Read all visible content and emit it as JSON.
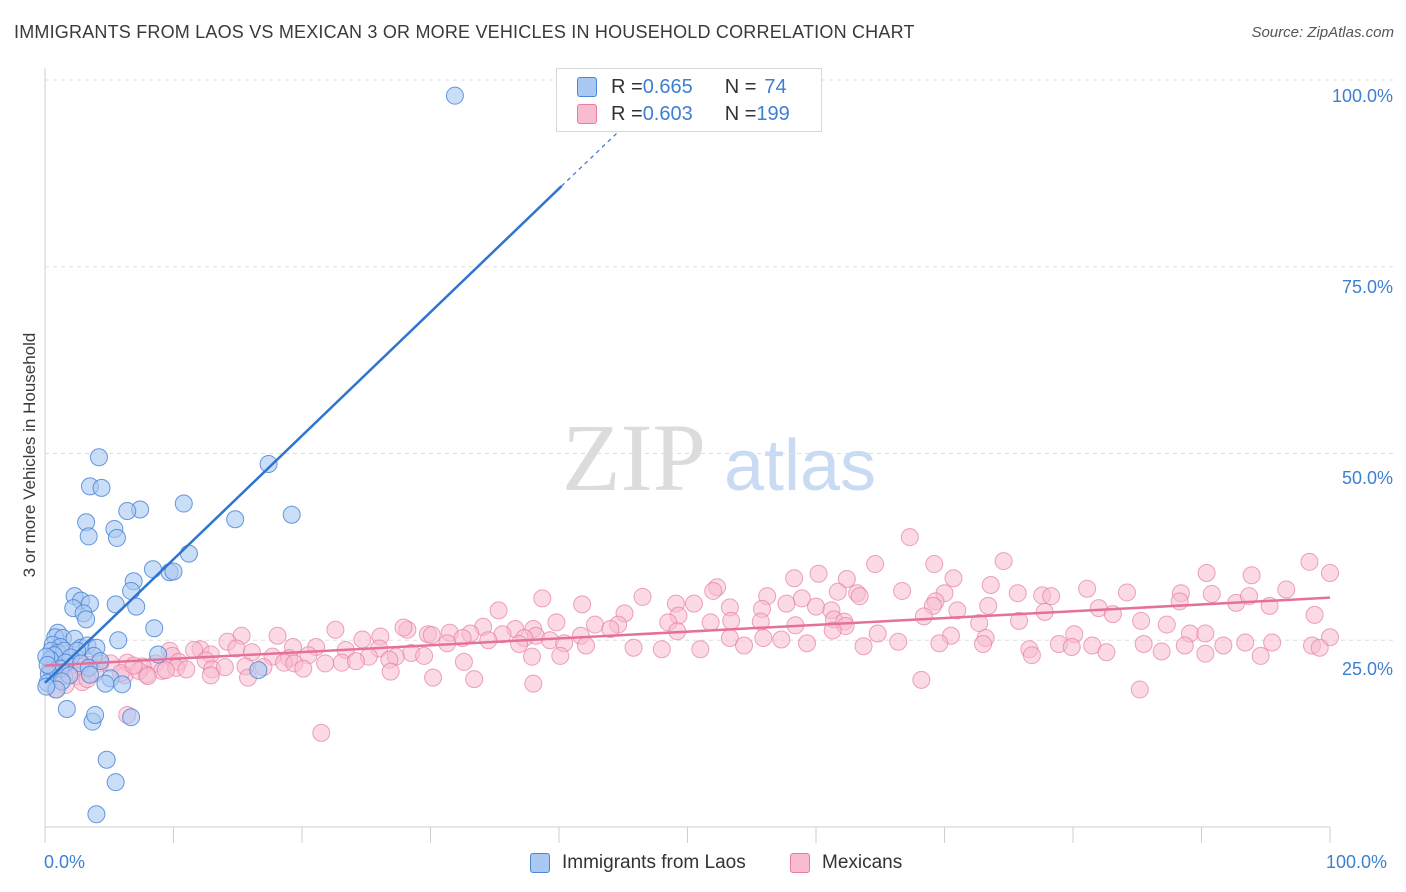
{
  "header": {
    "title": "IMMIGRANTS FROM LAOS VS MEXICAN 3 OR MORE VEHICLES IN HOUSEHOLD CORRELATION CHART",
    "source": "Source: ZipAtlas.com"
  },
  "watermark": {
    "zip": "ZIP",
    "atlas": "atlas"
  },
  "legend_top": {
    "rows": [
      {
        "r_label": "R = ",
        "r_value": "0.665",
        "n_label": "N = ",
        "n_value": "74"
      },
      {
        "r_label": "R = ",
        "r_value": "0.603",
        "n_label": "N = ",
        "n_value": "199"
      }
    ]
  },
  "colors": {
    "laos_fill": "#a9c8f2",
    "laos_stroke": "#4d86d6",
    "laos_line": "#2f74d0",
    "mex_fill": "#f7bcd0",
    "mex_stroke": "#e67ea0",
    "mex_line": "#e5709a",
    "tick_text": "#3f7fd0",
    "grid": "#dddddd"
  },
  "chart_data": {
    "type": "scatter",
    "title": "IMMIGRANTS FROM LAOS VS MEXICAN 3 OR MORE VEHICLES IN HOUSEHOLD CORRELATION CHART",
    "xlabel": "",
    "ylabel": "3 or more Vehicles in Household",
    "xlim": [
      0,
      100
    ],
    "ylim": [
      0,
      100
    ],
    "x_tick_labels": [
      "0.0%",
      "100.0%"
    ],
    "y_tick_labels": [
      "25.0%",
      "50.0%",
      "75.0%",
      "100.0%"
    ],
    "y_ticks": [
      25,
      50,
      75,
      100
    ],
    "grid": true,
    "legend_position": "bottom",
    "series": [
      {
        "name": "Immigrants from Laos",
        "r": 0.665,
        "n": 74,
        "trend": {
          "x0": 0,
          "y0": 19.3,
          "x1": 40.2,
          "y1": 85.8,
          "dashed_to_x": 45.0,
          "dashed_to_y": 93.7
        },
        "points": [
          [
            31.9,
            97.9
          ],
          [
            4.2,
            49.5
          ],
          [
            17.4,
            48.6
          ],
          [
            3.5,
            45.6
          ],
          [
            4.4,
            45.4
          ],
          [
            10.8,
            43.3
          ],
          [
            7.4,
            42.5
          ],
          [
            6.4,
            42.3
          ],
          [
            14.8,
            41.2
          ],
          [
            19.2,
            41.8
          ],
          [
            3.2,
            40.8
          ],
          [
            5.4,
            39.9
          ],
          [
            3.4,
            38.9
          ],
          [
            5.6,
            38.7
          ],
          [
            11.2,
            36.6
          ],
          [
            8.4,
            34.5
          ],
          [
            9.7,
            34.1
          ],
          [
            10.0,
            34.2
          ],
          [
            6.9,
            32.9
          ],
          [
            6.7,
            31.6
          ],
          [
            2.3,
            30.9
          ],
          [
            2.8,
            30.3
          ],
          [
            5.5,
            29.8
          ],
          [
            3.5,
            29.9
          ],
          [
            7.1,
            29.5
          ],
          [
            2.2,
            29.3
          ],
          [
            3.0,
            28.6
          ],
          [
            3.2,
            27.8
          ],
          [
            8.5,
            26.6
          ],
          [
            1.0,
            26.0
          ],
          [
            0.8,
            25.4
          ],
          [
            1.4,
            25.3
          ],
          [
            2.3,
            25.2
          ],
          [
            5.7,
            25.0
          ],
          [
            0.6,
            24.4
          ],
          [
            1.2,
            24.1
          ],
          [
            2.8,
            24.0
          ],
          [
            3.3,
            24.3
          ],
          [
            4.0,
            24.0
          ],
          [
            0.5,
            23.6
          ],
          [
            1.0,
            23.3
          ],
          [
            1.5,
            23.6
          ],
          [
            2.5,
            23.6
          ],
          [
            0.7,
            23.0
          ],
          [
            2.0,
            22.7
          ],
          [
            3.8,
            22.9
          ],
          [
            8.8,
            23.1
          ],
          [
            0.4,
            22.4
          ],
          [
            1.6,
            22.0
          ],
          [
            2.8,
            21.9
          ],
          [
            4.3,
            22.2
          ],
          [
            0.5,
            21.0
          ],
          [
            1.2,
            21.2
          ],
          [
            3.4,
            21.3
          ],
          [
            16.6,
            21.0
          ],
          [
            0.3,
            20.5
          ],
          [
            1.9,
            20.3
          ],
          [
            3.5,
            20.4
          ],
          [
            5.1,
            19.9
          ],
          [
            0.2,
            19.3
          ],
          [
            1.3,
            19.5
          ],
          [
            4.7,
            19.2
          ],
          [
            6.0,
            19.1
          ],
          [
            0.9,
            18.4
          ],
          [
            1.7,
            15.8
          ],
          [
            3.7,
            14.1
          ],
          [
            3.9,
            15.0
          ],
          [
            6.7,
            14.7
          ],
          [
            4.8,
            9.0
          ],
          [
            5.5,
            6.0
          ],
          [
            4.0,
            1.7
          ],
          [
            0.1,
            22.8
          ],
          [
            0.2,
            21.7
          ],
          [
            0.1,
            18.8
          ]
        ]
      },
      {
        "name": "Mexicans",
        "r": 0.603,
        "n": 199,
        "trend": {
          "x0": 0,
          "y0": 21.6,
          "x1": 100,
          "y1": 30.7
        },
        "points": [
          [
            67.3,
            38.8
          ],
          [
            74.6,
            35.6
          ],
          [
            98.4,
            35.5
          ],
          [
            64.6,
            35.2
          ],
          [
            69.2,
            35.2
          ],
          [
            90.4,
            34.0
          ],
          [
            100.0,
            34.0
          ],
          [
            60.2,
            33.9
          ],
          [
            93.9,
            33.7
          ],
          [
            70.7,
            33.3
          ],
          [
            58.3,
            33.3
          ],
          [
            62.4,
            33.2
          ],
          [
            52.3,
            32.1
          ],
          [
            61.7,
            31.5
          ],
          [
            73.6,
            32.4
          ],
          [
            52.0,
            31.6
          ],
          [
            63.2,
            31.3
          ],
          [
            66.7,
            31.6
          ],
          [
            70.0,
            31.3
          ],
          [
            81.1,
            31.9
          ],
          [
            84.2,
            31.4
          ],
          [
            88.4,
            31.3
          ],
          [
            77.6,
            31.0
          ],
          [
            75.7,
            31.3
          ],
          [
            63.4,
            30.9
          ],
          [
            96.6,
            31.8
          ],
          [
            90.8,
            31.2
          ],
          [
            56.2,
            30.9
          ],
          [
            58.9,
            30.6
          ],
          [
            46.5,
            30.8
          ],
          [
            50.5,
            29.9
          ],
          [
            88.3,
            30.2
          ],
          [
            69.3,
            30.2
          ],
          [
            78.3,
            30.9
          ],
          [
            38.7,
            30.6
          ],
          [
            55.8,
            29.2
          ],
          [
            57.7,
            29.9
          ],
          [
            60.0,
            29.5
          ],
          [
            77.8,
            28.8
          ],
          [
            92.7,
            30.0
          ],
          [
            93.7,
            30.9
          ],
          [
            95.3,
            29.6
          ],
          [
            69.1,
            29.6
          ],
          [
            71.0,
            29.0
          ],
          [
            73.4,
            29.6
          ],
          [
            82.0,
            29.3
          ],
          [
            49.1,
            29.9
          ],
          [
            41.8,
            29.8
          ],
          [
            35.3,
            29.0
          ],
          [
            53.3,
            29.4
          ],
          [
            61.2,
            29.0
          ],
          [
            45.1,
            28.6
          ],
          [
            49.3,
            28.3
          ],
          [
            68.4,
            28.2
          ],
          [
            83.1,
            28.5
          ],
          [
            61.4,
            27.8
          ],
          [
            53.4,
            27.6
          ],
          [
            55.7,
            27.5
          ],
          [
            48.5,
            27.4
          ],
          [
            62.2,
            27.5
          ],
          [
            75.8,
            27.6
          ],
          [
            85.3,
            27.6
          ],
          [
            72.7,
            27.3
          ],
          [
            39.8,
            27.4
          ],
          [
            44.6,
            27.1
          ],
          [
            62.3,
            26.9
          ],
          [
            42.8,
            27.1
          ],
          [
            51.8,
            27.4
          ],
          [
            58.4,
            27.0
          ],
          [
            87.3,
            27.1
          ],
          [
            98.8,
            28.4
          ],
          [
            34.1,
            26.8
          ],
          [
            36.6,
            26.5
          ],
          [
            38.0,
            26.5
          ],
          [
            49.2,
            26.2
          ],
          [
            44.0,
            26.5
          ],
          [
            61.3,
            26.3
          ],
          [
            64.8,
            25.9
          ],
          [
            80.1,
            25.8
          ],
          [
            28.2,
            26.4
          ],
          [
            27.9,
            26.7
          ],
          [
            31.5,
            26.0
          ],
          [
            35.6,
            25.8
          ],
          [
            41.7,
            25.6
          ],
          [
            29.8,
            25.8
          ],
          [
            33.1,
            25.9
          ],
          [
            38.2,
            25.6
          ],
          [
            53.3,
            25.3
          ],
          [
            55.9,
            25.3
          ],
          [
            57.3,
            25.1
          ],
          [
            70.5,
            25.6
          ],
          [
            73.2,
            25.3
          ],
          [
            89.1,
            25.9
          ],
          [
            90.3,
            25.9
          ],
          [
            100.0,
            25.4
          ],
          [
            15.3,
            25.6
          ],
          [
            18.1,
            25.6
          ],
          [
            22.6,
            26.4
          ],
          [
            26.1,
            25.5
          ],
          [
            24.7,
            25.1
          ],
          [
            30.1,
            25.7
          ],
          [
            32.5,
            25.3
          ],
          [
            37.3,
            25.3
          ],
          [
            34.5,
            25.0
          ],
          [
            36.9,
            24.5
          ],
          [
            39.3,
            25.0
          ],
          [
            40.4,
            24.6
          ],
          [
            42.1,
            24.3
          ],
          [
            45.8,
            24.0
          ],
          [
            48.0,
            23.8
          ],
          [
            51.0,
            23.8
          ],
          [
            54.4,
            24.3
          ],
          [
            59.3,
            24.6
          ],
          [
            63.7,
            24.2
          ],
          [
            66.4,
            24.8
          ],
          [
            69.6,
            24.6
          ],
          [
            73.0,
            24.5
          ],
          [
            76.6,
            23.8
          ],
          [
            78.9,
            24.5
          ],
          [
            81.5,
            24.3
          ],
          [
            85.5,
            24.5
          ],
          [
            88.7,
            24.3
          ],
          [
            91.7,
            24.3
          ],
          [
            93.4,
            24.7
          ],
          [
            95.5,
            24.7
          ],
          [
            98.6,
            24.3
          ],
          [
            99.2,
            24.0
          ],
          [
            19.3,
            24.1
          ],
          [
            21.1,
            24.1
          ],
          [
            23.4,
            23.7
          ],
          [
            26.0,
            23.9
          ],
          [
            28.5,
            23.3
          ],
          [
            31.3,
            24.6
          ],
          [
            14.2,
            24.8
          ],
          [
            14.9,
            23.9
          ],
          [
            12.1,
            23.8
          ],
          [
            11.6,
            23.7
          ],
          [
            9.7,
            23.6
          ],
          [
            9.9,
            22.9
          ],
          [
            12.9,
            23.1
          ],
          [
            16.1,
            23.4
          ],
          [
            17.7,
            22.8
          ],
          [
            19.0,
            22.6
          ],
          [
            20.5,
            23.0
          ],
          [
            25.2,
            22.8
          ],
          [
            27.3,
            22.8
          ],
          [
            29.5,
            22.9
          ],
          [
            32.6,
            22.1
          ],
          [
            37.9,
            22.8
          ],
          [
            40.1,
            22.9
          ],
          [
            94.6,
            22.9
          ],
          [
            90.3,
            23.2
          ],
          [
            86.9,
            23.5
          ],
          [
            82.6,
            23.4
          ],
          [
            79.9,
            24.1
          ],
          [
            76.8,
            23.0
          ],
          [
            12.5,
            22.3
          ],
          [
            10.4,
            22.1
          ],
          [
            8.6,
            21.9
          ],
          [
            6.4,
            22.0
          ],
          [
            5.1,
            21.9
          ],
          [
            4.3,
            21.9
          ],
          [
            3.5,
            21.7
          ],
          [
            2.8,
            21.5
          ],
          [
            1.9,
            21.5
          ],
          [
            1.3,
            21.5
          ],
          [
            0.7,
            21.0
          ],
          [
            0.4,
            21.2
          ],
          [
            7.6,
            21.5
          ],
          [
            9.1,
            20.9
          ],
          [
            10.2,
            21.3
          ],
          [
            13.0,
            21.1
          ],
          [
            14.0,
            21.4
          ],
          [
            15.6,
            21.5
          ],
          [
            18.6,
            22.0
          ],
          [
            19.4,
            21.9
          ],
          [
            20.1,
            21.2
          ],
          [
            21.8,
            21.9
          ],
          [
            23.1,
            22.0
          ],
          [
            24.2,
            22.2
          ],
          [
            26.8,
            22.4
          ],
          [
            6.2,
            20.3
          ],
          [
            7.9,
            20.4
          ],
          [
            3.9,
            20.6
          ],
          [
            2.5,
            20.2
          ],
          [
            1.5,
            20.2
          ],
          [
            5.9,
            20.6
          ],
          [
            7.3,
            20.9
          ],
          [
            8.0,
            20.2
          ],
          [
            12.9,
            20.3
          ],
          [
            15.8,
            20.0
          ],
          [
            1.6,
            19.0
          ],
          [
            2.9,
            19.4
          ],
          [
            38.0,
            19.2
          ],
          [
            33.4,
            19.8
          ],
          [
            30.2,
            20.0
          ],
          [
            26.9,
            20.8
          ],
          [
            68.2,
            19.7
          ],
          [
            85.2,
            18.4
          ],
          [
            6.4,
            15.0
          ],
          [
            21.5,
            12.6
          ],
          [
            0.8,
            18.4
          ],
          [
            3.3,
            19.8
          ],
          [
            6.9,
            21.6
          ],
          [
            9.4,
            21.0
          ],
          [
            11.0,
            21.1
          ],
          [
            17.0,
            21.4
          ]
        ]
      }
    ]
  },
  "bottom_legend": {
    "items": [
      {
        "label": "Immigrants from Laos"
      },
      {
        "label": "Mexicans"
      }
    ]
  }
}
